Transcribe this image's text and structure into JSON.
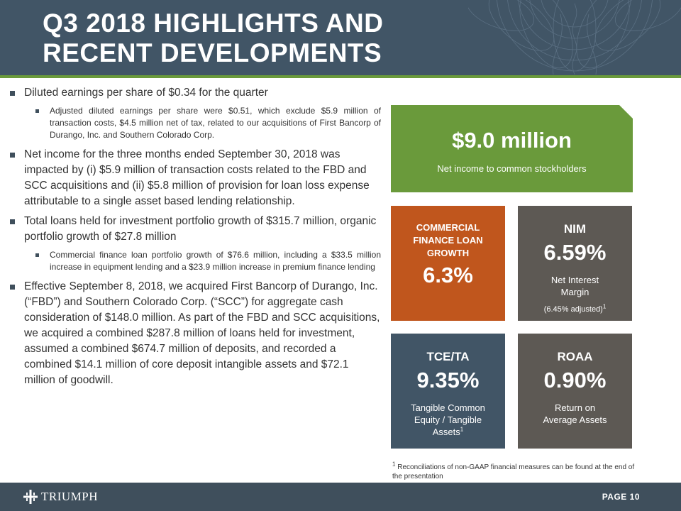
{
  "header": {
    "title": "Q3 2018 HIGHLIGHTS AND RECENT DEVELOPMENTS"
  },
  "bullets": [
    {
      "text": "Diluted earnings per share of $0.34 for the quarter",
      "sub": [
        "Adjusted diluted earnings per share were $0.51, which exclude $5.9 million of transaction costs, $4.5 million net of tax, related to our acquisitions of First Bancorp of Durango, Inc. and Southern Colorado Corp."
      ]
    },
    {
      "text": "Net income for the three months ended September 30, 2018 was impacted by (i) $5.9 million of transaction costs related to the FBD and SCC acquisitions and (ii) $5.8 million of provision for loan loss expense attributable to a single asset based lending relationship.",
      "sub": []
    },
    {
      "text": "Total loans held for investment portfolio growth of $315.7 million, organic portfolio growth of $27.8 million",
      "sub": [
        "Commercial finance loan portfolio growth of $76.6 million, including a $33.5 million increase in equipment lending and a $23.9 million increase in premium finance lending"
      ]
    },
    {
      "text": "Effective September 8, 2018, we acquired First Bancorp of Durango, Inc. (“FBD”) and Southern Colorado Corp. (“SCC”) for aggregate cash consideration of $148.0 million. As part of the FBD and SCC acquisitions, we acquired a combined $287.8 million of loans held for investment, assumed a combined $674.7 million of deposits, and recorded a combined $14.1 million of core deposit intangible assets and $72.1 million of goodwill.",
      "sub": []
    }
  ],
  "kpis": {
    "net_income": {
      "value": "$9.0 million",
      "label": "Net income to common stockholders",
      "color": "#6a9a3b"
    },
    "commercial": {
      "heading": "COMMERCIAL FINANCE LOAN GROWTH",
      "value": "6.3%",
      "color": "#c0561d"
    },
    "nim": {
      "heading": "NIM",
      "value": "6.59%",
      "label": "Net Interest Margin",
      "note": "(6.45% adjusted)",
      "note_sup": "1",
      "color": "#5d5954"
    },
    "tce": {
      "heading": "TCE/TA",
      "value": "9.35%",
      "label": "Tangible Common Equity / Tangible Assets",
      "label_sup": "1",
      "color": "#415566"
    },
    "roaa": {
      "heading": "ROAA",
      "value": "0.90%",
      "label": "Return on Average Assets",
      "color": "#5d5954"
    }
  },
  "footnote": {
    "marker": "1",
    "text": " Reconciliations of non-GAAP financial measures can be found at the end of the presentation"
  },
  "footer": {
    "brand": "TRIUMPH",
    "page": "PAGE 10"
  },
  "colors": {
    "header": "#415566",
    "accent": "#6a9a3b",
    "footer": "#3f4f5c"
  }
}
